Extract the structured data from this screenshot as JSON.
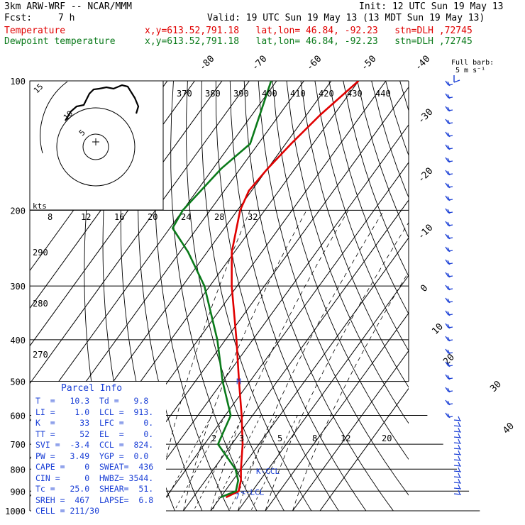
{
  "header": {
    "model": "3km ARW-WRF -- NCAR/MMM",
    "init": "Init: 12 UTC Sun 19 May 13",
    "fcst_label": "Fcst:",
    "fcst_value": "7 h",
    "valid": "Valid: 19 UTC Sun 19 May 13 (13 MDT Sun 19 May 13)",
    "temp_label": "Temperature",
    "temp_info": "x,y=613.52,791.18   lat,lon= 46.84, -92.23   stn=DLH ,72745",
    "dew_label": "Dewpoint temperature",
    "dew_info": "x,y=613.52,791.18   lat,lon= 46.84, -92.23   stn=DLH ,72745",
    "barb_legend": "Full barb:",
    "barb_legend_unit": "5 m s⁻¹"
  },
  "colors": {
    "temperature": "#e00000",
    "dewpoint": "#0a7a1a",
    "parcel": "#1a3fd6",
    "isotherm": "#000000",
    "adiabat": "#000000"
  },
  "chart_data": {
    "type": "skew-t",
    "pressure_levels": [
      100,
      200,
      300,
      400,
      500,
      600,
      700,
      800,
      900,
      1000
    ],
    "isotherm_labels": [
      -80,
      -70,
      -60,
      -50,
      -40,
      -30,
      -20,
      -10,
      0,
      10,
      20,
      30,
      40
    ],
    "theta_labels": [
      370,
      380,
      390,
      400,
      410,
      420,
      430,
      440
    ],
    "theta_labels_left": [
      290,
      280,
      270
    ],
    "mixing_ratio_labels": [
      "2",
      "3",
      "5",
      "8",
      "12",
      "20"
    ],
    "hodograph": {
      "unit_label": "kts",
      "ring_labels": [
        "5",
        "10",
        "15"
      ],
      "speed_labels": [
        "8",
        "12",
        "16",
        "20",
        "24",
        "28",
        "32"
      ]
    },
    "temperature": [
      {
        "p": 100,
        "t": -50
      },
      {
        "p": 120,
        "t": -55
      },
      {
        "p": 140,
        "t": -58
      },
      {
        "p": 160,
        "t": -60
      },
      {
        "p": 180,
        "t": -61
      },
      {
        "p": 200,
        "t": -59
      },
      {
        "p": 250,
        "t": -51
      },
      {
        "p": 300,
        "t": -42
      },
      {
        "p": 400,
        "t": -26
      },
      {
        "p": 500,
        "t": -14
      },
      {
        "p": 600,
        "t": -4
      },
      {
        "p": 700,
        "t": 4
      },
      {
        "p": 800,
        "t": 10
      },
      {
        "p": 850,
        "t": 13
      },
      {
        "p": 900,
        "t": 15
      },
      {
        "p": 930,
        "t": 12
      }
    ],
    "dewpoint": [
      {
        "p": 100,
        "t": -82
      },
      {
        "p": 140,
        "t": -73
      },
      {
        "p": 160,
        "t": -77
      },
      {
        "p": 200,
        "t": -80
      },
      {
        "p": 220,
        "t": -79
      },
      {
        "p": 250,
        "t": -67
      },
      {
        "p": 300,
        "t": -52
      },
      {
        "p": 400,
        "t": -33
      },
      {
        "p": 500,
        "t": -20
      },
      {
        "p": 600,
        "t": -8
      },
      {
        "p": 700,
        "t": -5
      },
      {
        "p": 800,
        "t": 8
      },
      {
        "p": 850,
        "t": 12
      },
      {
        "p": 900,
        "t": 14
      },
      {
        "p": 930,
        "t": 10
      }
    ],
    "annotations": [
      {
        "text": "K-CCL",
        "p": 808,
        "t": 15
      },
      {
        "text": "<-LCL",
        "p": 905,
        "t": 15
      },
      {
        "text": "M",
        "p": 500,
        "t": -16
      },
      {
        "text": "7",
        "p": 925,
        "t": 14
      }
    ]
  },
  "parcel_info": {
    "title": "Parcel Info",
    "rows": [
      "T  =   10.3  Td =   9.8",
      "LI =    1.0  LCL =  913.",
      "K  =     33  LFC =    0.",
      "TT =     52  EL  =    0.",
      "SVI =  -3.4  CCL =  824.",
      "PW =   3.49  YGP =  0.0",
      "CAPE =    0  SWEAT=  436",
      "CIN =     0  HWBZ= 3544.",
      "Tc =   25.0  SHEAR=  51.",
      "SREH =  467  LAPSE=  6.8",
      "CELL = 211/30"
    ]
  }
}
